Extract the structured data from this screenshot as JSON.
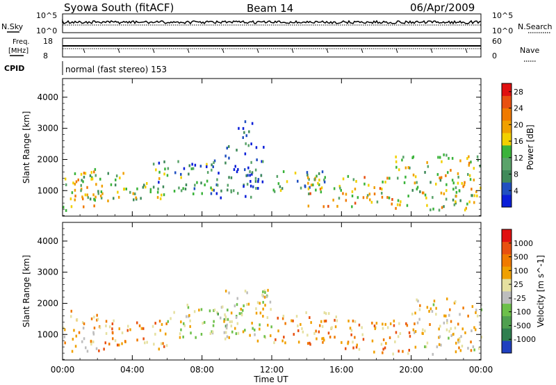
{
  "header": {
    "station": "Syowa South (fitACF)",
    "beam": "Beam 14",
    "date": "06/Apr/2009"
  },
  "panels": {
    "nsky": {
      "label": "N.Sky",
      "tick_top": "10^5",
      "tick_bottom": "10^0",
      "right_label": "N.Search"
    },
    "freq": {
      "label_top": "Freq.",
      "label_bottom": "[MHz]",
      "tick_top": "18",
      "tick_bottom": "8",
      "right_tick_top": "60",
      "right_tick_bottom": "0",
      "right_label": "Nave"
    },
    "cpid": {
      "label": "CPID",
      "text": "normal (fast stereo) 153"
    }
  },
  "colors": {
    "power": [
      "#0a1ed8",
      "#2050c0",
      "#3f8a5a",
      "#5aa36a",
      "#3ab33a",
      "#f2d000",
      "#f0a000",
      "#f07a00",
      "#e85010",
      "#e01010"
    ],
    "velocity": [
      "#2040c0",
      "#2f7f4f",
      "#4fa04f",
      "#6dc04a",
      "#bdbdbd",
      "#e5e0a0",
      "#f0a000",
      "#f07a00",
      "#e85010",
      "#e01010"
    ]
  },
  "chart_data": [
    {
      "type": "heatmap",
      "name": "power",
      "ylabel": "Slant Range [km]",
      "ylim": [
        180,
        4600
      ],
      "yticks": [
        1000,
        2000,
        3000,
        4000
      ],
      "xlim": [
        0,
        24
      ],
      "colorbar": {
        "label": "Power [dB]",
        "ticks": [
          4,
          8,
          12,
          16,
          20,
          24,
          28
        ],
        "range": [
          0,
          30
        ]
      },
      "echo_regions": [
        {
          "t": [
            0,
            2
          ],
          "r": [
            400,
            1800
          ],
          "level": 0.55
        },
        {
          "t": [
            1,
            6
          ],
          "r": [
            700,
            1600
          ],
          "level": 0.45
        },
        {
          "t": [
            5,
            9
          ],
          "r": [
            900,
            2000
          ],
          "level": 0.3
        },
        {
          "t": [
            9,
            11.5
          ],
          "r": [
            800,
            2500
          ],
          "level": 0.2
        },
        {
          "t": [
            10,
            11
          ],
          "r": [
            2400,
            3300
          ],
          "level": 0.15
        },
        {
          "t": [
            12,
            15
          ],
          "r": [
            1000,
            1700
          ],
          "level": 0.35
        },
        {
          "t": [
            14,
            19
          ],
          "r": [
            500,
            1500
          ],
          "level": 0.6
        },
        {
          "t": [
            19,
            24
          ],
          "r": [
            400,
            2200
          ],
          "level": 0.5
        }
      ]
    },
    {
      "type": "heatmap",
      "name": "velocity",
      "ylabel": "Slant Range [km]",
      "ylim": [
        180,
        4600
      ],
      "yticks": [
        1000,
        2000,
        3000,
        4000
      ],
      "xlim": [
        0,
        24
      ],
      "xlabel": "Time UT",
      "xticks": [
        "00:00",
        "04:00",
        "08:00",
        "12:00",
        "16:00",
        "20:00",
        "00:00"
      ],
      "colorbar": {
        "label": "Velocity [m s^-1]",
        "ticks": [
          "1000",
          "500",
          "100",
          "25",
          "-25",
          "-100",
          "-500",
          "-1000"
        ]
      },
      "echo_regions": [
        {
          "t": [
            0,
            2
          ],
          "r": [
            400,
            1800
          ],
          "level": 0.6
        },
        {
          "t": [
            2,
            6
          ],
          "r": [
            500,
            1500
          ],
          "level": 0.7
        },
        {
          "t": [
            6,
            10
          ],
          "r": [
            900,
            2000
          ],
          "level": 0.45
        },
        {
          "t": [
            9,
            12
          ],
          "r": [
            800,
            2500
          ],
          "level": 0.5
        },
        {
          "t": [
            12,
            16
          ],
          "r": [
            700,
            1800
          ],
          "level": 0.7
        },
        {
          "t": [
            16,
            20
          ],
          "r": [
            400,
            1500
          ],
          "level": 0.7
        },
        {
          "t": [
            20,
            24
          ],
          "r": [
            400,
            2200
          ],
          "level": 0.55
        }
      ]
    }
  ]
}
